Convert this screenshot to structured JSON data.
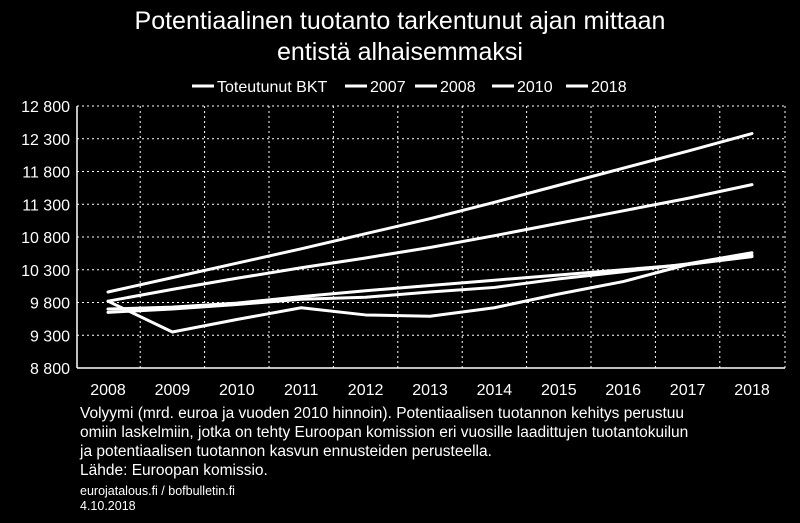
{
  "title": {
    "line1": "Potentiaalinen tuotanto tarkentunut ajan mittaan",
    "line2": "entistä alhaisemmaksi"
  },
  "chart_data": {
    "type": "line",
    "title": "Potentiaalinen tuotanto tarkentunut ajan mittaan entistä alhaisemmaksi",
    "xlabel": "",
    "ylabel": "",
    "x": [
      2008,
      2009,
      2010,
      2011,
      2012,
      2013,
      2014,
      2015,
      2016,
      2017,
      2018
    ],
    "x_tick_labels": [
      "2008",
      "2009",
      "2010",
      "2011",
      "2012",
      "2013",
      "2014",
      "2015",
      "2016",
      "2017",
      "2018"
    ],
    "ylim": [
      8800,
      12800
    ],
    "y_ticks": [
      8800,
      9300,
      9800,
      10300,
      10800,
      11300,
      11800,
      12300,
      12800
    ],
    "y_tick_labels": [
      "8 800",
      "9 300",
      "9 800",
      "10 300",
      "10 800",
      "11 300",
      "11 800",
      "12 300",
      "12 800"
    ],
    "grid": true,
    "legend_position": "top",
    "series": [
      {
        "name": "Toteutunut BKT",
        "values": [
          9820,
          9350,
          9540,
          9720,
          9610,
          9590,
          9720,
          9930,
          10120,
          10380,
          10520
        ]
      },
      {
        "name": "2007",
        "values": [
          9960,
          10180,
          10400,
          10620,
          10850,
          11080,
          11330,
          11590,
          11850,
          12110,
          12380
        ]
      },
      {
        "name": "2008",
        "values": [
          9820,
          10000,
          10170,
          10330,
          10480,
          10640,
          10820,
          11010,
          11200,
          11390,
          11600
        ]
      },
      {
        "name": "2010",
        "values": [
          9650,
          9700,
          9770,
          9850,
          9880,
          9960,
          10030,
          10160,
          10270,
          10390,
          10560
        ]
      },
      {
        "name": "2018",
        "values": [
          9700,
          9730,
          9790,
          9890,
          9980,
          10060,
          10140,
          10220,
          10300,
          10380,
          10500
        ]
      }
    ]
  },
  "notes": {
    "line1": "Volyymi (mrd. euroa ja vuoden 2010 hinnoin). Potentiaalisen tuotannon kehitys perustuu",
    "line2": "omiin laskelmiin, jotka on tehty Euroopan komission eri vuosille laadittujen tuotantokuilun",
    "line3": "ja potentiaalisen tuotannon kasvun ennusteiden perusteella.",
    "line4": "Lähde: Euroopan komissio."
  },
  "footer": {
    "site": "eurojatalous.fi / bofbulletin.fi",
    "date": "4.10.2018"
  },
  "colors": {
    "background": "#000000",
    "line": "#ffffff",
    "grid": "#ffffff",
    "text": "#ffffff"
  }
}
